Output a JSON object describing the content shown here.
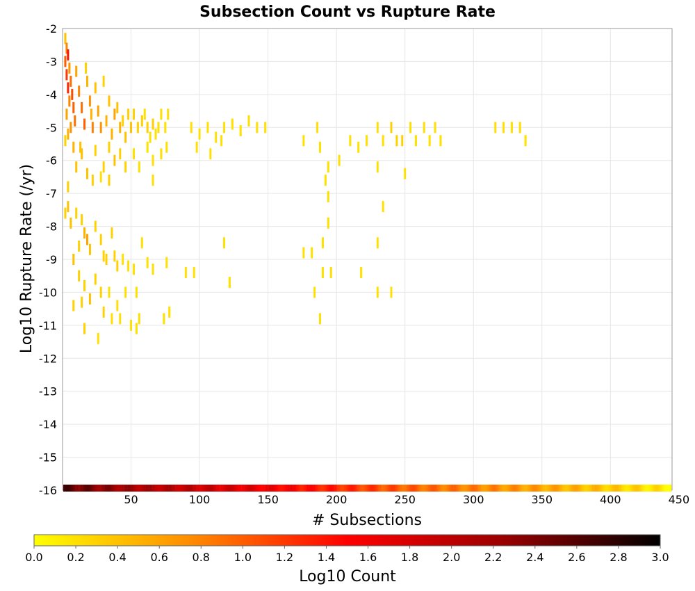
{
  "chart_data": {
    "type": "heatmap",
    "title": "Subsection Count vs Rupture Rate",
    "xlabel": "# Subsections",
    "ylabel": "Log10 Rupture Rate (/yr)",
    "xlim": [
      0,
      445
    ],
    "ylim": [
      -16,
      -2
    ],
    "x_ticks": [
      50,
      100,
      150,
      200,
      250,
      300,
      350,
      400,
      450
    ],
    "y_ticks": [
      -2,
      -3,
      -4,
      -5,
      -6,
      -7,
      -8,
      -9,
      -10,
      -11,
      -12,
      -13,
      -14,
      -15,
      -16
    ],
    "grid": true,
    "colorbar": {
      "label": "Log10 Count",
      "range": [
        0.0,
        3.0
      ],
      "ticks": [
        "0.0",
        "0.2",
        "0.4",
        "0.6",
        "0.8",
        "1.0",
        "1.2",
        "1.4",
        "1.6",
        "1.8",
        "2.0",
        "2.2",
        "2.4",
        "2.6",
        "2.8",
        "3.0"
      ],
      "colors": [
        "#ffff00",
        "#ff8c00",
        "#ff0000",
        "#990000",
        "#000000"
      ]
    },
    "bottom_row": {
      "y": -16,
      "x_start": 1,
      "x_end": 444,
      "log10_count_profile": [
        [
          1,
          2.6
        ],
        [
          10,
          2.5
        ],
        [
          30,
          2.3
        ],
        [
          60,
          2.1
        ],
        [
          100,
          1.9
        ],
        [
          150,
          1.6
        ],
        [
          200,
          1.3
        ],
        [
          250,
          1.0
        ],
        [
          300,
          0.8
        ],
        [
          350,
          0.6
        ],
        [
          400,
          0.35
        ],
        [
          444,
          0.1
        ]
      ]
    },
    "cells": [
      [
        2,
        -2.3,
        0.4
      ],
      [
        3,
        -2.6,
        0.8
      ],
      [
        4,
        -2.8,
        1.4
      ],
      [
        2,
        -3.0,
        1.0
      ],
      [
        5,
        -3.2,
        0.7
      ],
      [
        3,
        -3.4,
        1.2
      ],
      [
        6,
        -3.6,
        0.9
      ],
      [
        4,
        -3.8,
        1.3
      ],
      [
        7,
        -4.0,
        1.1
      ],
      [
        5,
        -4.2,
        0.8
      ],
      [
        8,
        -4.4,
        1.0
      ],
      [
        3,
        -4.6,
        0.6
      ],
      [
        9,
        -4.8,
        0.9
      ],
      [
        6,
        -5.0,
        0.7
      ],
      [
        4,
        -5.2,
        0.5
      ],
      [
        2,
        -5.4,
        0.3
      ],
      [
        10,
        -3.3,
        0.6
      ],
      [
        12,
        -3.9,
        0.8
      ],
      [
        14,
        -4.4,
        0.9
      ],
      [
        16,
        -4.9,
        1.0
      ],
      [
        18,
        -3.6,
        0.5
      ],
      [
        20,
        -4.2,
        0.7
      ],
      [
        22,
        -5.0,
        0.8
      ],
      [
        13,
        -5.6,
        0.4
      ],
      [
        17,
        -3.2,
        0.3
      ],
      [
        21,
        -4.6,
        0.5
      ],
      [
        24,
        -3.8,
        0.4
      ],
      [
        26,
        -4.5,
        0.6
      ],
      [
        28,
        -5.0,
        0.7
      ],
      [
        30,
        -3.6,
        0.3
      ],
      [
        32,
        -4.8,
        0.5
      ],
      [
        34,
        -4.2,
        0.4
      ],
      [
        36,
        -5.2,
        0.5
      ],
      [
        38,
        -4.6,
        0.6
      ],
      [
        40,
        -4.4,
        0.4
      ],
      [
        42,
        -5.0,
        0.5
      ],
      [
        44,
        -4.8,
        0.3
      ],
      [
        46,
        -5.3,
        0.4
      ],
      [
        48,
        -4.6,
        0.3
      ],
      [
        50,
        -5.0,
        0.4
      ],
      [
        52,
        -4.6,
        0.3
      ],
      [
        55,
        -5.0,
        0.3
      ],
      [
        58,
        -4.8,
        0.3
      ],
      [
        60,
        -4.6,
        0.2
      ],
      [
        62,
        -5.0,
        0.3
      ],
      [
        64,
        -5.3,
        0.2
      ],
      [
        66,
        -4.9,
        0.3
      ],
      [
        68,
        -5.2,
        0.2
      ],
      [
        70,
        -5.0,
        0.2
      ],
      [
        72,
        -4.6,
        0.2
      ],
      [
        75,
        -5.0,
        0.2
      ],
      [
        77,
        -4.6,
        0.2
      ],
      [
        8,
        -5.6,
        0.5
      ],
      [
        10,
        -6.2,
        0.4
      ],
      [
        14,
        -5.8,
        0.4
      ],
      [
        18,
        -6.4,
        0.4
      ],
      [
        24,
        -5.7,
        0.3
      ],
      [
        30,
        -6.2,
        0.3
      ],
      [
        34,
        -5.6,
        0.3
      ],
      [
        38,
        -6.0,
        0.4
      ],
      [
        42,
        -5.8,
        0.3
      ],
      [
        46,
        -6.2,
        0.3
      ],
      [
        52,
        -5.8,
        0.2
      ],
      [
        56,
        -6.2,
        0.2
      ],
      [
        62,
        -5.6,
        0.2
      ],
      [
        66,
        -6.0,
        0.2
      ],
      [
        72,
        -5.8,
        0.2
      ],
      [
        76,
        -5.6,
        0.2
      ],
      [
        22,
        -6.6,
        0.3
      ],
      [
        28,
        -6.5,
        0.2
      ],
      [
        34,
        -6.6,
        0.3
      ],
      [
        66,
        -6.6,
        0.2
      ],
      [
        94,
        -5.0,
        0.2
      ],
      [
        100,
        -5.2,
        0.2
      ],
      [
        106,
        -5.0,
        0.2
      ],
      [
        112,
        -5.3,
        0.2
      ],
      [
        118,
        -5.0,
        0.2
      ],
      [
        124,
        -4.9,
        0.2
      ],
      [
        130,
        -5.1,
        0.2
      ],
      [
        136,
        -4.8,
        0.2
      ],
      [
        142,
        -5.0,
        0.2
      ],
      [
        148,
        -5.0,
        0.2
      ],
      [
        98,
        -5.6,
        0.2
      ],
      [
        108,
        -5.8,
        0.2
      ],
      [
        116,
        -5.4,
        0.2
      ],
      [
        186,
        -5.0,
        0.2
      ],
      [
        176,
        -5.4,
        0.2
      ],
      [
        188,
        -5.6,
        0.2
      ],
      [
        194,
        -6.2,
        0.2
      ],
      [
        202,
        -6.0,
        0.2
      ],
      [
        210,
        -5.4,
        0.2
      ],
      [
        216,
        -5.6,
        0.2
      ],
      [
        222,
        -5.4,
        0.2
      ],
      [
        230,
        -5.0,
        0.2
      ],
      [
        234,
        -5.4,
        0.2
      ],
      [
        240,
        -5.0,
        0.3
      ],
      [
        244,
        -5.4,
        0.3
      ],
      [
        248,
        -5.4,
        0.3
      ],
      [
        254,
        -5.0,
        0.2
      ],
      [
        258,
        -5.4,
        0.2
      ],
      [
        264,
        -5.0,
        0.2
      ],
      [
        268,
        -5.4,
        0.2
      ],
      [
        272,
        -5.0,
        0.2
      ],
      [
        276,
        -5.4,
        0.2
      ],
      [
        250,
        -6.4,
        0.2
      ],
      [
        230,
        -6.2,
        0.2
      ],
      [
        322,
        -5.0,
        0.2
      ],
      [
        328,
        -5.0,
        0.2
      ],
      [
        334,
        -5.0,
        0.2
      ],
      [
        338,
        -5.4,
        0.2
      ],
      [
        316,
        -5.0,
        0.2
      ],
      [
        192,
        -6.6,
        0.2
      ],
      [
        194,
        -7.1,
        0.2
      ],
      [
        194,
        -7.9,
        0.2
      ],
      [
        234,
        -7.4,
        0.2
      ],
      [
        4,
        -6.8,
        0.3
      ],
      [
        4,
        -7.4,
        0.4
      ],
      [
        2,
        -7.6,
        0.3
      ],
      [
        6,
        -7.9,
        0.4
      ],
      [
        10,
        -7.6,
        0.3
      ],
      [
        14,
        -7.8,
        0.3
      ],
      [
        16,
        -8.2,
        0.5
      ],
      [
        18,
        -8.4,
        0.6
      ],
      [
        20,
        -8.7,
        0.4
      ],
      [
        12,
        -8.6,
        0.3
      ],
      [
        8,
        -9.0,
        0.4
      ],
      [
        24,
        -8.0,
        0.3
      ],
      [
        28,
        -8.4,
        0.3
      ],
      [
        30,
        -8.9,
        0.3
      ],
      [
        32,
        -9.0,
        0.3
      ],
      [
        36,
        -8.2,
        0.3
      ],
      [
        38,
        -8.9,
        0.3
      ],
      [
        40,
        -9.2,
        0.3
      ],
      [
        44,
        -9.0,
        0.2
      ],
      [
        48,
        -9.2,
        0.2
      ],
      [
        52,
        -9.3,
        0.2
      ],
      [
        58,
        -8.5,
        0.2
      ],
      [
        62,
        -9.1,
        0.2
      ],
      [
        66,
        -9.3,
        0.2
      ],
      [
        76,
        -9.1,
        0.2
      ],
      [
        118,
        -8.5,
        0.2
      ],
      [
        176,
        -8.8,
        0.2
      ],
      [
        182,
        -8.8,
        0.2
      ],
      [
        190,
        -8.5,
        0.2
      ],
      [
        230,
        -8.5,
        0.2
      ],
      [
        90,
        -9.4,
        0.2
      ],
      [
        96,
        -9.4,
        0.2
      ],
      [
        190,
        -9.4,
        0.2
      ],
      [
        196,
        -9.4,
        0.2
      ],
      [
        218,
        -9.4,
        0.2
      ],
      [
        12,
        -9.5,
        0.3
      ],
      [
        16,
        -9.8,
        0.3
      ],
      [
        20,
        -10.2,
        0.4
      ],
      [
        24,
        -9.6,
        0.3
      ],
      [
        28,
        -10.0,
        0.3
      ],
      [
        14,
        -10.3,
        0.3
      ],
      [
        8,
        -10.4,
        0.3
      ],
      [
        34,
        -10.0,
        0.2
      ],
      [
        40,
        -10.4,
        0.2
      ],
      [
        46,
        -10.0,
        0.2
      ],
      [
        54,
        -10.0,
        0.2
      ],
      [
        122,
        -9.7,
        0.2
      ],
      [
        184,
        -10.0,
        0.2
      ],
      [
        230,
        -10.0,
        0.2
      ],
      [
        240,
        -10.0,
        0.2
      ],
      [
        30,
        -10.6,
        0.3
      ],
      [
        36,
        -10.8,
        0.2
      ],
      [
        42,
        -10.8,
        0.2
      ],
      [
        56,
        -10.8,
        0.2
      ],
      [
        74,
        -10.8,
        0.2
      ],
      [
        78,
        -10.6,
        0.2
      ],
      [
        188,
        -10.8,
        0.2
      ],
      [
        16,
        -11.1,
        0.3
      ],
      [
        26,
        -11.4,
        0.2
      ],
      [
        50,
        -11.0,
        0.2
      ],
      [
        54,
        -11.1,
        0.2
      ]
    ]
  }
}
